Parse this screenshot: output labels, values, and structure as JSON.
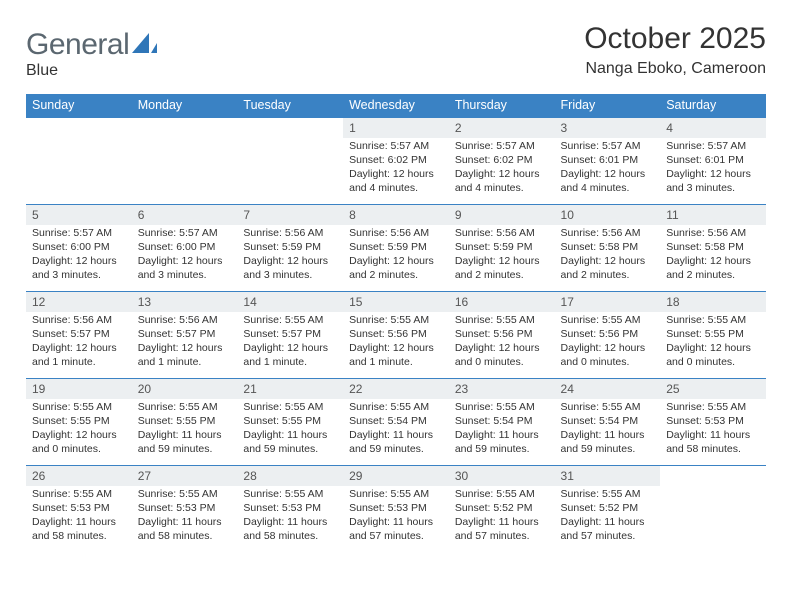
{
  "brand": {
    "text1": "General",
    "text2": "Blue",
    "logo_color": "#2f76b8",
    "text1_color": "#5b6770"
  },
  "colors": {
    "header_bg": "#3a82c4",
    "header_fg": "#ffffff",
    "row_border": "#3a82c4",
    "daynum_bg": "#eceff1",
    "body_text": "#333333"
  },
  "heading": {
    "title": "October 2025",
    "location": "Nanga Eboko, Cameroon"
  },
  "weekdays": [
    "Sunday",
    "Monday",
    "Tuesday",
    "Wednesday",
    "Thursday",
    "Friday",
    "Saturday"
  ],
  "weeks": [
    [
      {
        "empty": true
      },
      {
        "empty": true
      },
      {
        "empty": true
      },
      {
        "day": "1",
        "sunrise": "Sunrise: 5:57 AM",
        "sunset": "Sunset: 6:02 PM",
        "daylight1": "Daylight: 12 hours",
        "daylight2": "and 4 minutes."
      },
      {
        "day": "2",
        "sunrise": "Sunrise: 5:57 AM",
        "sunset": "Sunset: 6:02 PM",
        "daylight1": "Daylight: 12 hours",
        "daylight2": "and 4 minutes."
      },
      {
        "day": "3",
        "sunrise": "Sunrise: 5:57 AM",
        "sunset": "Sunset: 6:01 PM",
        "daylight1": "Daylight: 12 hours",
        "daylight2": "and 4 minutes."
      },
      {
        "day": "4",
        "sunrise": "Sunrise: 5:57 AM",
        "sunset": "Sunset: 6:01 PM",
        "daylight1": "Daylight: 12 hours",
        "daylight2": "and 3 minutes."
      }
    ],
    [
      {
        "day": "5",
        "sunrise": "Sunrise: 5:57 AM",
        "sunset": "Sunset: 6:00 PM",
        "daylight1": "Daylight: 12 hours",
        "daylight2": "and 3 minutes."
      },
      {
        "day": "6",
        "sunrise": "Sunrise: 5:57 AM",
        "sunset": "Sunset: 6:00 PM",
        "daylight1": "Daylight: 12 hours",
        "daylight2": "and 3 minutes."
      },
      {
        "day": "7",
        "sunrise": "Sunrise: 5:56 AM",
        "sunset": "Sunset: 5:59 PM",
        "daylight1": "Daylight: 12 hours",
        "daylight2": "and 3 minutes."
      },
      {
        "day": "8",
        "sunrise": "Sunrise: 5:56 AM",
        "sunset": "Sunset: 5:59 PM",
        "daylight1": "Daylight: 12 hours",
        "daylight2": "and 2 minutes."
      },
      {
        "day": "9",
        "sunrise": "Sunrise: 5:56 AM",
        "sunset": "Sunset: 5:59 PM",
        "daylight1": "Daylight: 12 hours",
        "daylight2": "and 2 minutes."
      },
      {
        "day": "10",
        "sunrise": "Sunrise: 5:56 AM",
        "sunset": "Sunset: 5:58 PM",
        "daylight1": "Daylight: 12 hours",
        "daylight2": "and 2 minutes."
      },
      {
        "day": "11",
        "sunrise": "Sunrise: 5:56 AM",
        "sunset": "Sunset: 5:58 PM",
        "daylight1": "Daylight: 12 hours",
        "daylight2": "and 2 minutes."
      }
    ],
    [
      {
        "day": "12",
        "sunrise": "Sunrise: 5:56 AM",
        "sunset": "Sunset: 5:57 PM",
        "daylight1": "Daylight: 12 hours",
        "daylight2": "and 1 minute."
      },
      {
        "day": "13",
        "sunrise": "Sunrise: 5:56 AM",
        "sunset": "Sunset: 5:57 PM",
        "daylight1": "Daylight: 12 hours",
        "daylight2": "and 1 minute."
      },
      {
        "day": "14",
        "sunrise": "Sunrise: 5:55 AM",
        "sunset": "Sunset: 5:57 PM",
        "daylight1": "Daylight: 12 hours",
        "daylight2": "and 1 minute."
      },
      {
        "day": "15",
        "sunrise": "Sunrise: 5:55 AM",
        "sunset": "Sunset: 5:56 PM",
        "daylight1": "Daylight: 12 hours",
        "daylight2": "and 1 minute."
      },
      {
        "day": "16",
        "sunrise": "Sunrise: 5:55 AM",
        "sunset": "Sunset: 5:56 PM",
        "daylight1": "Daylight: 12 hours",
        "daylight2": "and 0 minutes."
      },
      {
        "day": "17",
        "sunrise": "Sunrise: 5:55 AM",
        "sunset": "Sunset: 5:56 PM",
        "daylight1": "Daylight: 12 hours",
        "daylight2": "and 0 minutes."
      },
      {
        "day": "18",
        "sunrise": "Sunrise: 5:55 AM",
        "sunset": "Sunset: 5:55 PM",
        "daylight1": "Daylight: 12 hours",
        "daylight2": "and 0 minutes."
      }
    ],
    [
      {
        "day": "19",
        "sunrise": "Sunrise: 5:55 AM",
        "sunset": "Sunset: 5:55 PM",
        "daylight1": "Daylight: 12 hours",
        "daylight2": "and 0 minutes."
      },
      {
        "day": "20",
        "sunrise": "Sunrise: 5:55 AM",
        "sunset": "Sunset: 5:55 PM",
        "daylight1": "Daylight: 11 hours",
        "daylight2": "and 59 minutes."
      },
      {
        "day": "21",
        "sunrise": "Sunrise: 5:55 AM",
        "sunset": "Sunset: 5:55 PM",
        "daylight1": "Daylight: 11 hours",
        "daylight2": "and 59 minutes."
      },
      {
        "day": "22",
        "sunrise": "Sunrise: 5:55 AM",
        "sunset": "Sunset: 5:54 PM",
        "daylight1": "Daylight: 11 hours",
        "daylight2": "and 59 minutes."
      },
      {
        "day": "23",
        "sunrise": "Sunrise: 5:55 AM",
        "sunset": "Sunset: 5:54 PM",
        "daylight1": "Daylight: 11 hours",
        "daylight2": "and 59 minutes."
      },
      {
        "day": "24",
        "sunrise": "Sunrise: 5:55 AM",
        "sunset": "Sunset: 5:54 PM",
        "daylight1": "Daylight: 11 hours",
        "daylight2": "and 59 minutes."
      },
      {
        "day": "25",
        "sunrise": "Sunrise: 5:55 AM",
        "sunset": "Sunset: 5:53 PM",
        "daylight1": "Daylight: 11 hours",
        "daylight2": "and 58 minutes."
      }
    ],
    [
      {
        "day": "26",
        "sunrise": "Sunrise: 5:55 AM",
        "sunset": "Sunset: 5:53 PM",
        "daylight1": "Daylight: 11 hours",
        "daylight2": "and 58 minutes."
      },
      {
        "day": "27",
        "sunrise": "Sunrise: 5:55 AM",
        "sunset": "Sunset: 5:53 PM",
        "daylight1": "Daylight: 11 hours",
        "daylight2": "and 58 minutes."
      },
      {
        "day": "28",
        "sunrise": "Sunrise: 5:55 AM",
        "sunset": "Sunset: 5:53 PM",
        "daylight1": "Daylight: 11 hours",
        "daylight2": "and 58 minutes."
      },
      {
        "day": "29",
        "sunrise": "Sunrise: 5:55 AM",
        "sunset": "Sunset: 5:53 PM",
        "daylight1": "Daylight: 11 hours",
        "daylight2": "and 57 minutes."
      },
      {
        "day": "30",
        "sunrise": "Sunrise: 5:55 AM",
        "sunset": "Sunset: 5:52 PM",
        "daylight1": "Daylight: 11 hours",
        "daylight2": "and 57 minutes."
      },
      {
        "day": "31",
        "sunrise": "Sunrise: 5:55 AM",
        "sunset": "Sunset: 5:52 PM",
        "daylight1": "Daylight: 11 hours",
        "daylight2": "and 57 minutes."
      },
      {
        "empty": true
      }
    ]
  ]
}
